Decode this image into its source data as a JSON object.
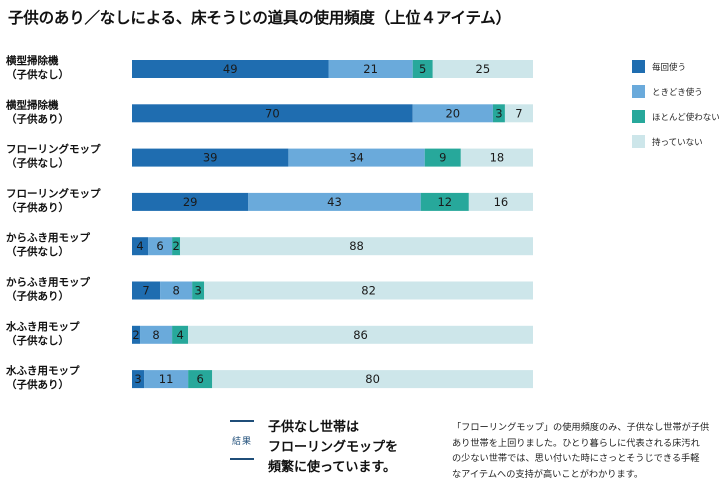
{
  "title": "子供のあり／なしによる、床そうじの道具の使用頻度（上位４アイテム）",
  "chart_data": {
    "type": "bar",
    "orientation": "horizontal",
    "stacked": true,
    "xlim": [
      0,
      100
    ],
    "categories": [
      [
        "横型掃除機",
        "（子供なし）"
      ],
      [
        "横型掃除機",
        "（子供あり）"
      ],
      [
        "フローリングモップ",
        "（子供なし）"
      ],
      [
        "フローリングモップ",
        "（子供あり）"
      ],
      [
        "からふき用モップ",
        "（子供なし）"
      ],
      [
        "からふき用モップ",
        "（子供あり）"
      ],
      [
        "水ふき用モップ",
        "（子供なし）"
      ],
      [
        "水ふき用モップ",
        "（子供あり）"
      ]
    ],
    "series": [
      {
        "name": "毎回使う",
        "color": "#1f6db0",
        "values": [
          49,
          70,
          39,
          29,
          4,
          7,
          2,
          3
        ]
      },
      {
        "name": "ときどき使う",
        "color": "#6aaadb",
        "values": [
          21,
          20,
          34,
          43,
          6,
          8,
          8,
          11
        ]
      },
      {
        "name": "ほとんど使わない",
        "color": "#27a89b",
        "values": [
          5,
          3,
          9,
          12,
          2,
          3,
          4,
          6
        ]
      },
      {
        "name": "持っていない",
        "color": "#cde6ea",
        "values": [
          25,
          7,
          18,
          16,
          88,
          82,
          86,
          80
        ]
      }
    ],
    "legend": "right"
  },
  "conclusion": {
    "badge": "結果",
    "lines": [
      "子供なし世帯は",
      "フローリングモップを",
      "頻繁に使っています。"
    ]
  },
  "note": {
    "lines": [
      "「フローリングモップ」の使用頻度のみ、子供なし世帯が子供",
      "あり世帯を上回りました。ひとり暮らしに代表される床汚れ",
      "の少ない世帯では、思い付いた時にさっとそうじできる手軽",
      "なアイテムへの支持が高いことがわかります。"
    ]
  }
}
